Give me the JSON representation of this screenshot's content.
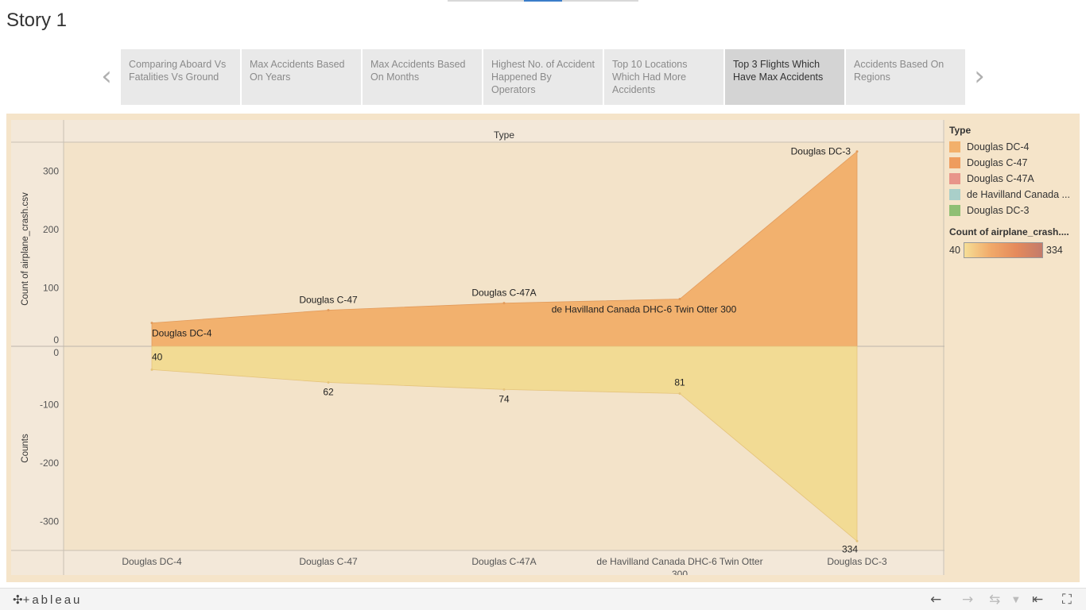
{
  "story": {
    "title": "Story 1",
    "points": [
      {
        "label": "Comparing Aboard Vs Fatalities Vs Ground",
        "active": false
      },
      {
        "label": "Max Accidents Based On Years",
        "active": false
      },
      {
        "label": "Max Accidents Based On Months",
        "active": false
      },
      {
        "label": "Highest No. of Accident Happened  By Operators",
        "active": false
      },
      {
        "label": "Top 10 Locations Which Had More Accidents",
        "active": false
      },
      {
        "label": "Top 3 Flights Which Have Max Accidents",
        "active": true
      },
      {
        "label": "Accidents Based On Regions",
        "active": false
      }
    ]
  },
  "legend": {
    "title": "Type",
    "items": [
      {
        "label": "Douglas DC-4",
        "color": "#f2b06b"
      },
      {
        "label": "Douglas C-47",
        "color": "#ee9c5e"
      },
      {
        "label": "Douglas C-47A",
        "color": "#e8958a"
      },
      {
        "label": "de Havilland Canada ...",
        "color": "#a9cfc9"
      },
      {
        "label": "Douglas DC-3",
        "color": "#8fbf74"
      }
    ],
    "color_title": "Count of airplane_crash....",
    "color_min": "40",
    "color_max": "334"
  },
  "footer": {
    "logo": "+ableau"
  },
  "chart_data": {
    "type": "area",
    "column_header": "Type",
    "categories": [
      "Douglas DC-4",
      "Douglas C-47",
      "Douglas C-47A",
      "de Havilland Canada DHC-6 Twin Otter 300",
      "Douglas DC-3"
    ],
    "x_tick_labels": [
      [
        "Douglas DC-4"
      ],
      [
        "Douglas C-47"
      ],
      [
        "Douglas C-47A"
      ],
      [
        "de Havilland Canada DHC-6 Twin Otter",
        "300"
      ],
      [
        "Douglas DC-3"
      ]
    ],
    "top": {
      "ylabel": "Count of airplane_crash.csv",
      "ylim": [
        0,
        350
      ],
      "ticks": [
        0,
        100,
        200,
        300
      ],
      "values": [
        40,
        62,
        74,
        81,
        334
      ],
      "color": "#f2b16e",
      "labels": [
        "Douglas DC-4",
        "Douglas C-47",
        "Douglas C-47A",
        "de Havilland Canada DHC-6 Twin Otter 300",
        "Douglas DC-3"
      ]
    },
    "bottom": {
      "ylabel": "Counts",
      "ylim": [
        -350,
        0
      ],
      "ticks": [
        0,
        -100,
        -200,
        -300
      ],
      "values": [
        -40,
        -62,
        -74,
        -81,
        -334
      ],
      "color": "#f2db94",
      "labels": [
        "40",
        "62",
        "74",
        "81",
        "334"
      ]
    }
  }
}
